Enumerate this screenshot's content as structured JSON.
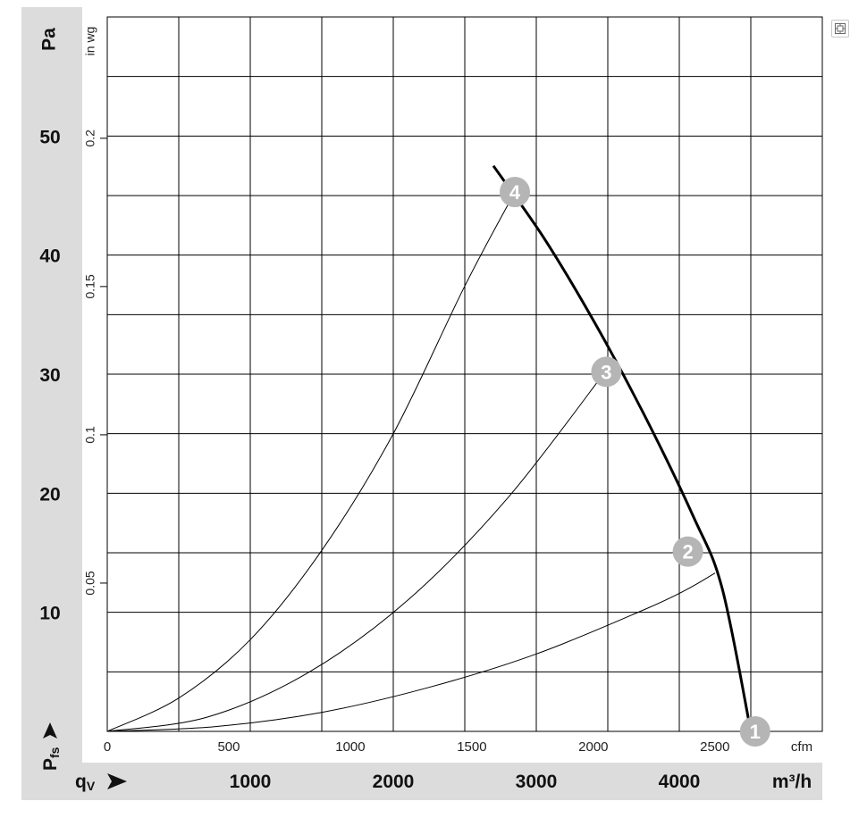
{
  "chart_data": {
    "type": "line",
    "axes": {
      "y_left": {
        "unit": "Pa",
        "symbol_main": "P",
        "symbol_sub": "fs",
        "ticks": [
          10,
          20,
          30,
          40,
          50
        ],
        "range": [
          0,
          60
        ]
      },
      "y_inner": {
        "unit": "in wg",
        "ticks": [
          "0.05",
          "0.1",
          "0.15",
          "0.2"
        ],
        "range": [
          0,
          0.2409
        ]
      },
      "x_top": {
        "unit": "cfm",
        "ticks": [
          "0",
          "500",
          "1000",
          "1500",
          "2000",
          "2500"
        ],
        "range": [
          0,
          2942
        ]
      },
      "x_bottom": {
        "unit": "m³/h",
        "symbol_main": "q",
        "symbol_sub": "V",
        "ticks": [
          "1000",
          "2000",
          "3000",
          "4000"
        ],
        "range": [
          0,
          5000
        ]
      }
    },
    "grid": true,
    "operating_curve": {
      "x": [
        2700,
        3050,
        3400,
        3750,
        4100,
        4300,
        4500
      ],
      "y": [
        47.5,
        41.5,
        34.5,
        26.7,
        18.0,
        12.0,
        0
      ]
    },
    "system_curves": [
      {
        "label": "2",
        "x": [
          0,
          750,
          1500,
          2250,
          3000,
          3750,
          4050,
          4250
        ],
        "y": [
          0,
          0.4,
          1.6,
          3.7,
          6.5,
          10.2,
          11.9,
          13.3
        ]
      },
      {
        "label": "3",
        "x": [
          0,
          700,
          1400,
          2100,
          2800,
          3500
        ],
        "y": [
          0,
          1.2,
          4.9,
          11.0,
          19.6,
          30.5
        ]
      },
      {
        "label": "4",
        "x": [
          0,
          500,
          1000,
          1500,
          2000,
          2500,
          2850
        ],
        "y": [
          0,
          2.8,
          7.7,
          15.2,
          25.0,
          37.4,
          45.3
        ]
      }
    ],
    "operating_points": [
      {
        "label": "1",
        "x": 4530,
        "y": 0
      },
      {
        "label": "2",
        "x": 4060,
        "y": 15.1
      },
      {
        "label": "3",
        "x": 3490,
        "y": 30.2
      },
      {
        "label": "4",
        "x": 2850,
        "y": 45.3
      }
    ],
    "colors": {
      "band": "#dcdcdc",
      "grid": "#000000",
      "curve": "#000000",
      "marker": "#b5b5b5",
      "marker_text": "#ffffff"
    }
  }
}
